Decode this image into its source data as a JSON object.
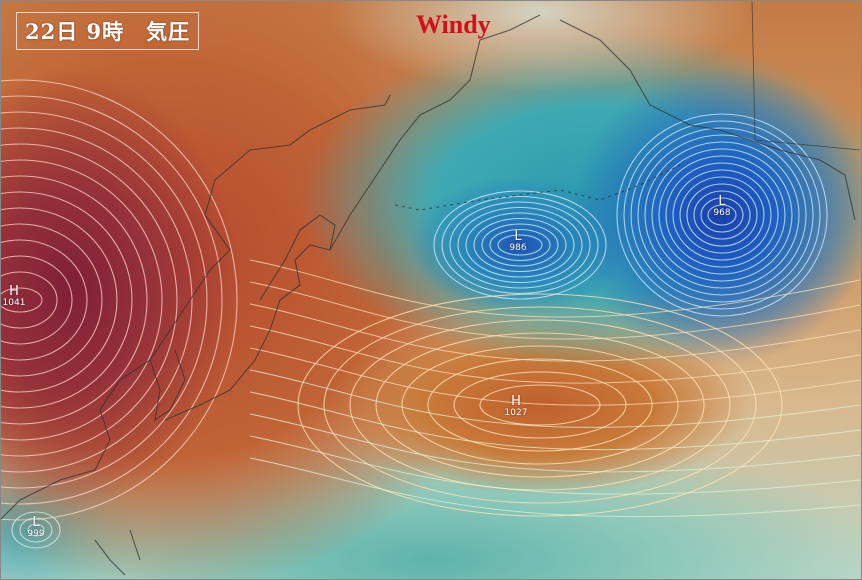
{
  "header": {
    "title": "22日 9時　気圧",
    "brand": "Windy"
  },
  "pressure_centers": [
    {
      "type": "H",
      "value": "1041"
    },
    {
      "type": "L",
      "value": "986"
    },
    {
      "type": "L",
      "value": "968"
    },
    {
      "type": "H",
      "value": "1027"
    },
    {
      "type": "L",
      "value": "999"
    }
  ],
  "colors": {
    "high": "#94303a",
    "mid": "#c87a3a",
    "low": "#1f5fbf",
    "brand": "#d0101a",
    "coast": "#333333"
  }
}
